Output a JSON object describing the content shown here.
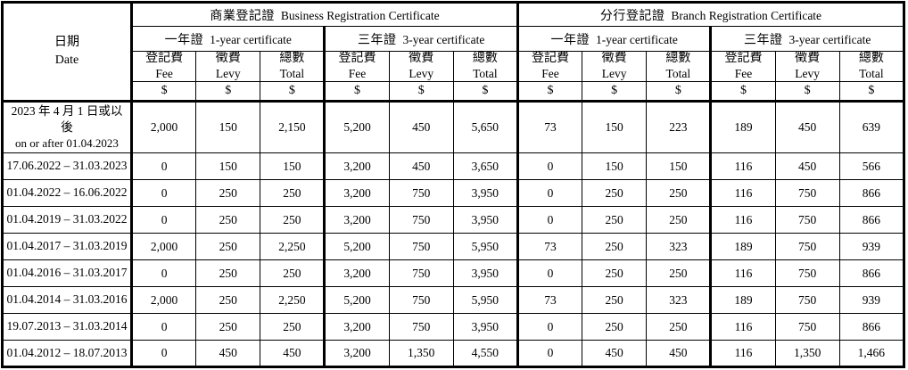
{
  "table": {
    "header": {
      "date": {
        "zh": "日期",
        "en": "Date"
      },
      "groups": [
        {
          "zh": "商業登記證",
          "en": "Business Registration Certificate"
        },
        {
          "zh": "分行登記證",
          "en": "Branch Registration Certificate"
        }
      ],
      "cert_types": [
        {
          "zh": "一年證",
          "en": "1-year certificate"
        },
        {
          "zh": "三年證",
          "en": "3-year certificate"
        }
      ],
      "fee_columns": [
        {
          "zh": "登記費",
          "en": "Fee"
        },
        {
          "zh": "徵費",
          "en": "Levy"
        },
        {
          "zh": "總數",
          "en": "Total"
        }
      ],
      "currency": "$"
    },
    "rows": [
      {
        "date_line1": "2023 年 4 月 1 日或以後",
        "date_line2": "on or after 01.04.2023",
        "values": [
          "2,000",
          "150",
          "2,150",
          "5,200",
          "450",
          "5,650",
          "73",
          "150",
          "223",
          "189",
          "450",
          "639"
        ]
      },
      {
        "date_line1": "17.06.2022 – 31.03.2023",
        "date_line2": "",
        "values": [
          "0",
          "150",
          "150",
          "3,200",
          "450",
          "3,650",
          "0",
          "150",
          "150",
          "116",
          "450",
          "566"
        ]
      },
      {
        "date_line1": "01.04.2022 – 16.06.2022",
        "date_line2": "",
        "values": [
          "0",
          "250",
          "250",
          "3,200",
          "750",
          "3,950",
          "0",
          "250",
          "250",
          "116",
          "750",
          "866"
        ]
      },
      {
        "date_line1": "01.04.2019 – 31.03.2022",
        "date_line2": "",
        "values": [
          "0",
          "250",
          "250",
          "3,200",
          "750",
          "3,950",
          "0",
          "250",
          "250",
          "116",
          "750",
          "866"
        ]
      },
      {
        "date_line1": "01.04.2017 – 31.03.2019",
        "date_line2": "",
        "values": [
          "2,000",
          "250",
          "2,250",
          "5,200",
          "750",
          "5,950",
          "73",
          "250",
          "323",
          "189",
          "750",
          "939"
        ]
      },
      {
        "date_line1": "01.04.2016 – 31.03.2017",
        "date_line2": "",
        "values": [
          "0",
          "250",
          "250",
          "3,200",
          "750",
          "3,950",
          "0",
          "250",
          "250",
          "116",
          "750",
          "866"
        ]
      },
      {
        "date_line1": "01.04.2014 – 31.03.2016",
        "date_line2": "",
        "values": [
          "2,000",
          "250",
          "2,250",
          "5,200",
          "750",
          "5,950",
          "73",
          "250",
          "323",
          "189",
          "750",
          "939"
        ]
      },
      {
        "date_line1": "19.07.2013 – 31.03.2014",
        "date_line2": "",
        "values": [
          "0",
          "250",
          "250",
          "3,200",
          "750",
          "3,950",
          "0",
          "250",
          "250",
          "116",
          "750",
          "866"
        ]
      },
      {
        "date_line1": "01.04.2012 – 18.07.2013",
        "date_line2": "",
        "values": [
          "0",
          "450",
          "450",
          "3,200",
          "1,350",
          "4,550",
          "0",
          "450",
          "450",
          "116",
          "1,350",
          "1,466"
        ]
      }
    ]
  },
  "colors": {
    "text": "#000000",
    "border": "#000000",
    "background": "#ffffff"
  }
}
